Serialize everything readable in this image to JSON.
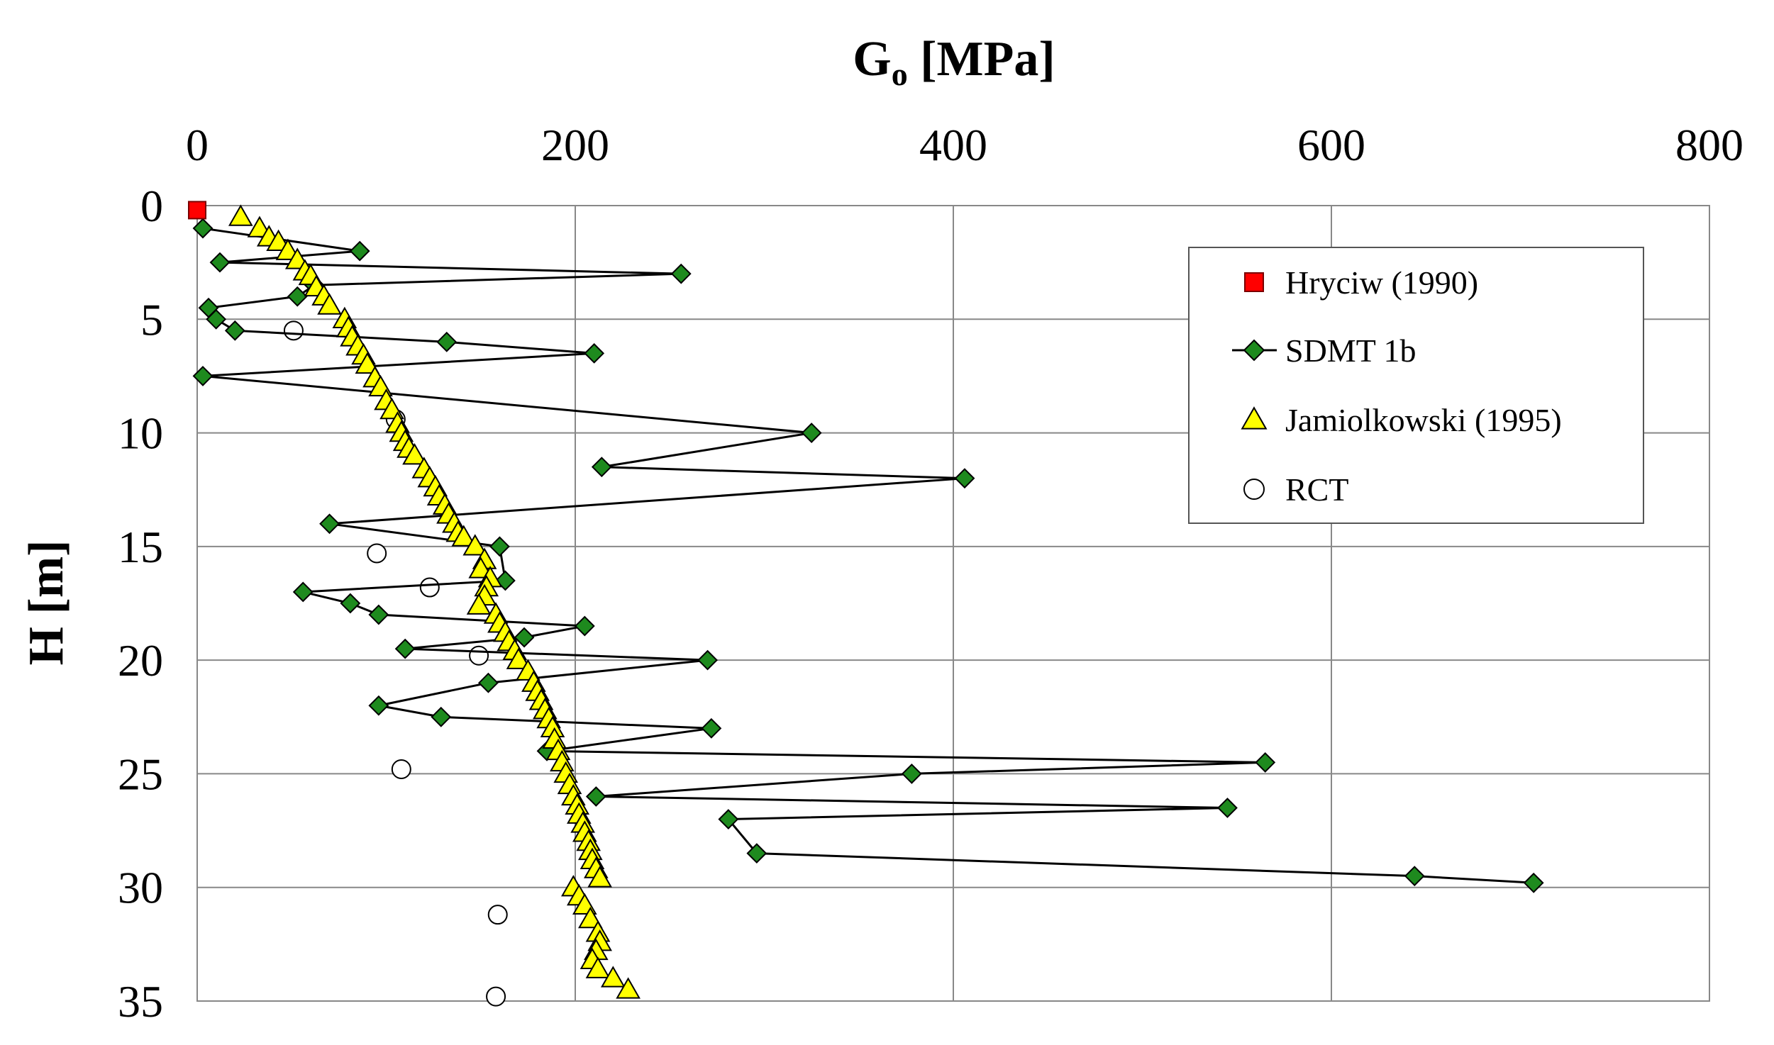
{
  "chart_data": {
    "type": "scatter",
    "title": "",
    "xlabel_main": "G",
    "xlabel_sub": "o",
    "xlabel_unit": " [MPa]",
    "ylabel": "H [m]",
    "x_axis_position": "top",
    "y_axis_inverted": true,
    "xlim": [
      0,
      800
    ],
    "ylim": [
      0,
      35
    ],
    "xticks": [
      0,
      200,
      400,
      600,
      800
    ],
    "yticks": [
      0,
      5,
      10,
      15,
      20,
      25,
      30,
      35
    ],
    "grid": true,
    "legend_position": "top-right",
    "series": [
      {
        "name": "Hryciw (1990)",
        "marker": "square",
        "color": "#ff0000",
        "line": false,
        "points": [
          [
            0,
            0.2
          ]
        ]
      },
      {
        "name": "SDMT 1b",
        "marker": "diamond",
        "color": "#1e8a1e",
        "line": true,
        "points": [
          [
            3,
            1.0
          ],
          [
            86,
            2.0
          ],
          [
            12,
            2.5
          ],
          [
            256,
            3.0
          ],
          [
            62,
            3.5
          ],
          [
            53,
            4.0
          ],
          [
            6,
            4.5
          ],
          [
            10,
            5.0
          ],
          [
            20,
            5.5
          ],
          [
            132,
            6.0
          ],
          [
            210,
            6.5
          ],
          [
            3,
            7.5
          ],
          [
            325,
            10.0
          ],
          [
            214,
            11.5
          ],
          [
            406,
            12.0
          ],
          [
            70,
            14.0
          ],
          [
            160,
            15.0
          ],
          [
            163,
            16.5
          ],
          [
            56,
            17.0
          ],
          [
            81,
            17.5
          ],
          [
            96,
            18.0
          ],
          [
            205,
            18.5
          ],
          [
            173,
            19.0
          ],
          [
            110,
            19.5
          ],
          [
            270,
            20.0
          ],
          [
            154,
            21.0
          ],
          [
            96,
            22.0
          ],
          [
            129,
            22.5
          ],
          [
            272,
            23.0
          ],
          [
            185,
            24.0
          ],
          [
            565,
            24.5
          ],
          [
            378,
            25.0
          ],
          [
            211,
            26.0
          ],
          [
            545,
            26.5
          ],
          [
            281,
            27.0
          ],
          [
            296,
            28.5
          ],
          [
            644,
            29.5
          ],
          [
            707,
            29.8
          ]
        ]
      },
      {
        "name": "Jamiolkowski (1995)",
        "marker": "triangle",
        "color": "#ffff00",
        "line": false,
        "points": [
          [
            23,
            0.5
          ],
          [
            33,
            1.0
          ],
          [
            38,
            1.4
          ],
          [
            43,
            1.6
          ],
          [
            48,
            2.0
          ],
          [
            53,
            2.4
          ],
          [
            57,
            2.9
          ],
          [
            60,
            3.1
          ],
          [
            63,
            3.6
          ],
          [
            67,
            4.0
          ],
          [
            70,
            4.4
          ],
          [
            78,
            5.0
          ],
          [
            80,
            5.4
          ],
          [
            82,
            5.8
          ],
          [
            85,
            6.2
          ],
          [
            88,
            6.6
          ],
          [
            90,
            7.0
          ],
          [
            94,
            7.6
          ],
          [
            97,
            8.0
          ],
          [
            100,
            8.6
          ],
          [
            103,
            9.0
          ],
          [
            106,
            9.6
          ],
          [
            108,
            10.0
          ],
          [
            110,
            10.4
          ],
          [
            112,
            10.7
          ],
          [
            115,
            11.0
          ],
          [
            120,
            11.6
          ],
          [
            123,
            12.0
          ],
          [
            126,
            12.4
          ],
          [
            128,
            12.8
          ],
          [
            131,
            13.2
          ],
          [
            133,
            13.6
          ],
          [
            136,
            14.0
          ],
          [
            138,
            14.4
          ],
          [
            141,
            14.6
          ],
          [
            147,
            15.0
          ],
          [
            152,
            15.6
          ],
          [
            150,
            16.0
          ],
          [
            155,
            16.4
          ],
          [
            153,
            16.8
          ],
          [
            152,
            17.2
          ],
          [
            149,
            17.6
          ],
          [
            158,
            18.0
          ],
          [
            160,
            18.4
          ],
          [
            163,
            18.8
          ],
          [
            165,
            19.2
          ],
          [
            168,
            19.6
          ],
          [
            170,
            20.0
          ],
          [
            175,
            20.5
          ],
          [
            178,
            21.0
          ],
          [
            180,
            21.4
          ],
          [
            182,
            21.8
          ],
          [
            184,
            22.2
          ],
          [
            186,
            22.6
          ],
          [
            188,
            23.0
          ],
          [
            189,
            23.5
          ],
          [
            191,
            24.0
          ],
          [
            193,
            24.5
          ],
          [
            195,
            25.0
          ],
          [
            197,
            25.5
          ],
          [
            199,
            26.0
          ],
          [
            201,
            26.4
          ],
          [
            202,
            26.8
          ],
          [
            204,
            27.2
          ],
          [
            205,
            27.6
          ],
          [
            207,
            28.0
          ],
          [
            208,
            28.4
          ],
          [
            209,
            28.8
          ],
          [
            211,
            29.2
          ],
          [
            213,
            29.6
          ],
          [
            199,
            30.0
          ],
          [
            202,
            30.4
          ],
          [
            205,
            30.8
          ],
          [
            208,
            31.4
          ],
          [
            212,
            32.0
          ],
          [
            213,
            32.4
          ],
          [
            211,
            32.8
          ],
          [
            209,
            33.2
          ],
          [
            212,
            33.6
          ],
          [
            220,
            34.0
          ],
          [
            228,
            34.5
          ]
        ]
      },
      {
        "name": "RCT",
        "marker": "circle",
        "color": "#ffffff",
        "line": false,
        "points": [
          [
            51,
            5.5
          ],
          [
            105,
            9.4
          ],
          [
            95,
            15.3
          ],
          [
            123,
            16.8
          ],
          [
            149,
            19.8
          ],
          [
            108,
            24.8
          ],
          [
            159,
            31.2
          ],
          [
            158,
            34.8
          ]
        ]
      }
    ]
  }
}
